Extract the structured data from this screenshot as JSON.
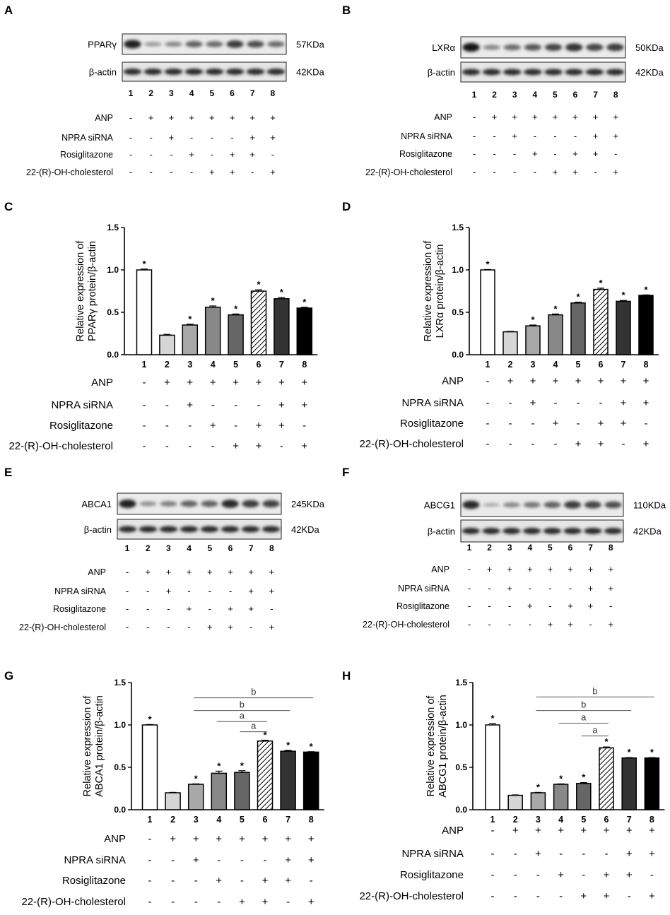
{
  "conditions": {
    "lanes": [
      "1",
      "2",
      "3",
      "4",
      "5",
      "6",
      "7",
      "8"
    ],
    "treatments": [
      {
        "label": "ANP",
        "signs": [
          "-",
          "+",
          "+",
          "+",
          "+",
          "+",
          "+",
          "+"
        ]
      },
      {
        "label": "NPRA siRNA",
        "signs": [
          "-",
          "-",
          "+",
          "-",
          "-",
          "-",
          "+",
          "+"
        ]
      },
      {
        "label": "Rosiglitazone",
        "signs": [
          "-",
          "-",
          "-",
          "+",
          "-",
          "+",
          "+",
          "-"
        ]
      },
      {
        "label": "22-(R)-OH-cholesterol",
        "signs": [
          "-",
          "-",
          "-",
          "-",
          "+",
          "+",
          "-",
          "+"
        ]
      }
    ]
  },
  "blots": [
    {
      "panel": "A",
      "target": "PPARγ",
      "target_kda": "57KDa",
      "control": "β-actin",
      "control_kda": "42KDa",
      "target_intensity": [
        0.9,
        0.25,
        0.35,
        0.55,
        0.5,
        0.75,
        0.65,
        0.5
      ],
      "control_intensity": [
        0.85,
        0.85,
        0.85,
        0.85,
        0.85,
        0.85,
        0.85,
        0.85
      ]
    },
    {
      "panel": "B",
      "target": "LXRα",
      "target_kda": "50KDa",
      "control": "β-actin",
      "control_kda": "42KDa",
      "target_intensity": [
        0.95,
        0.35,
        0.5,
        0.6,
        0.7,
        0.8,
        0.7,
        0.75
      ],
      "control_intensity": [
        0.85,
        0.85,
        0.85,
        0.85,
        0.85,
        0.85,
        0.85,
        0.85
      ]
    },
    {
      "panel": "E",
      "target": "ABCA1",
      "target_kda": "245KDa",
      "control": "β-actin",
      "control_kda": "42KDa",
      "target_intensity": [
        0.9,
        0.3,
        0.4,
        0.55,
        0.55,
        0.85,
        0.75,
        0.72
      ],
      "control_intensity": [
        0.85,
        0.85,
        0.85,
        0.85,
        0.85,
        0.85,
        0.85,
        0.85
      ]
    },
    {
      "panel": "F",
      "target": "ABCG1",
      "target_kda": "110KDa",
      "control": "β-actin",
      "control_kda": "42KDa",
      "target_intensity": [
        0.85,
        0.15,
        0.35,
        0.45,
        0.55,
        0.75,
        0.7,
        0.65
      ],
      "control_intensity": [
        0.85,
        0.85,
        0.85,
        0.85,
        0.85,
        0.85,
        0.85,
        0.85
      ]
    }
  ],
  "bar_styles": [
    {
      "fill": "#ffffff",
      "pattern": "none"
    },
    {
      "fill": "#d6d6d6",
      "pattern": "none"
    },
    {
      "fill": "#a8a8a8",
      "pattern": "none"
    },
    {
      "fill": "#888888",
      "pattern": "none"
    },
    {
      "fill": "#666666",
      "pattern": "none"
    },
    {
      "fill": "#ffffff",
      "pattern": "hatch"
    },
    {
      "fill": "#333333",
      "pattern": "none"
    },
    {
      "fill": "#000000",
      "pattern": "none"
    }
  ],
  "chart_data": [
    {
      "panel": "C",
      "type": "bar",
      "title": "",
      "ylabel": [
        "Relative expression of",
        "PPARγ protein/β-actin"
      ],
      "ylim": [
        0,
        1.5
      ],
      "yticks": [
        "0.0",
        "0.5",
        "1.0",
        "1.5"
      ],
      "categories": [
        "1",
        "2",
        "3",
        "4",
        "5",
        "6",
        "7",
        "8"
      ],
      "values": [
        1.0,
        0.23,
        0.35,
        0.56,
        0.47,
        0.75,
        0.66,
        0.55
      ],
      "errors": [
        0.01,
        0.01,
        0.01,
        0.015,
        0.01,
        0.015,
        0.015,
        0.01
      ],
      "significance": [
        "*",
        "",
        "*",
        "*",
        "*",
        "*",
        "*",
        "*"
      ],
      "brackets": []
    },
    {
      "panel": "D",
      "type": "bar",
      "title": "",
      "ylabel": [
        "Relative expression of",
        "LXRα protein/β-actin"
      ],
      "ylim": [
        0,
        1.5
      ],
      "yticks": [
        "0.0",
        "0.5",
        "1.0",
        "1.5"
      ],
      "categories": [
        "1",
        "2",
        "3",
        "4",
        "5",
        "6",
        "7",
        "8"
      ],
      "values": [
        1.0,
        0.27,
        0.34,
        0.47,
        0.61,
        0.77,
        0.63,
        0.7
      ],
      "errors": [
        0.005,
        0.005,
        0.01,
        0.01,
        0.01,
        0.015,
        0.01,
        0.005
      ],
      "significance": [
        "*",
        "",
        "*",
        "*",
        "*",
        "*",
        "*",
        "*"
      ],
      "brackets": []
    },
    {
      "panel": "G",
      "type": "bar",
      "title": "",
      "ylabel": [
        "Relative expression of",
        "ABCA1 protein/β-actin"
      ],
      "ylim": [
        0,
        1.5
      ],
      "yticks": [
        "0.0",
        "0.5",
        "1.0",
        "1.5"
      ],
      "categories": [
        "1",
        "2",
        "3",
        "4",
        "5",
        "6",
        "7",
        "8"
      ],
      "values": [
        1.0,
        0.2,
        0.3,
        0.43,
        0.44,
        0.81,
        0.69,
        0.68
      ],
      "errors": [
        0.005,
        0.005,
        0.005,
        0.025,
        0.02,
        0.01,
        0.01,
        0.005
      ],
      "significance": [
        "*",
        "",
        "*",
        "*",
        "*",
        "*",
        "*",
        "*"
      ],
      "brackets": [
        {
          "from": 5,
          "to": 6,
          "y": 0.92,
          "label": "a"
        },
        {
          "from": 4,
          "to": 6,
          "y": 1.04,
          "label": "a"
        },
        {
          "from": 3,
          "to": 7,
          "y": 1.17,
          "label": "b"
        },
        {
          "from": 3,
          "to": 8,
          "y": 1.32,
          "label": "b"
        }
      ]
    },
    {
      "panel": "H",
      "type": "bar",
      "title": "",
      "ylabel": [
        "Relative expression of",
        "ABCG1 protein/β-actin"
      ],
      "ylim": [
        0,
        1.5
      ],
      "yticks": [
        "0.0",
        "0.5",
        "1.0",
        "1.5"
      ],
      "categories": [
        "1",
        "2",
        "3",
        "4",
        "5",
        "6",
        "7",
        "8"
      ],
      "values": [
        1.0,
        0.17,
        0.2,
        0.3,
        0.31,
        0.73,
        0.61,
        0.61
      ],
      "errors": [
        0.015,
        0.005,
        0.005,
        0.005,
        0.01,
        0.01,
        0.005,
        0.005
      ],
      "significance": [
        "*",
        "",
        "*",
        "*",
        "*",
        "*",
        "*",
        "*"
      ],
      "brackets": [
        {
          "from": 5,
          "to": 6,
          "y": 0.87,
          "label": "a"
        },
        {
          "from": 4,
          "to": 6,
          "y": 1.02,
          "label": "a"
        },
        {
          "from": 3,
          "to": 7,
          "y": 1.17,
          "label": "b"
        },
        {
          "from": 3,
          "to": 8,
          "y": 1.33,
          "label": "b"
        }
      ]
    }
  ]
}
